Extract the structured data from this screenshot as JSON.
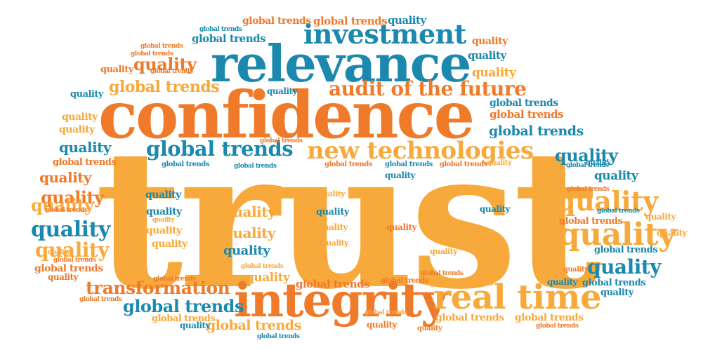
{
  "colors": {
    "orange": "#ef7a2a",
    "amber": "#f8a93b",
    "blue": "#1b89ad"
  },
  "words": {
    "trust": "trust",
    "confidence": "confidence",
    "relevance": "relevance",
    "investment": "investment",
    "integrity": "integrity",
    "real_time": "real time",
    "new_technologies": "new technologies",
    "audit_of_the_future": "audit of the future",
    "transformation": "transformation",
    "global_trends": "global trends",
    "quality": "quality"
  }
}
